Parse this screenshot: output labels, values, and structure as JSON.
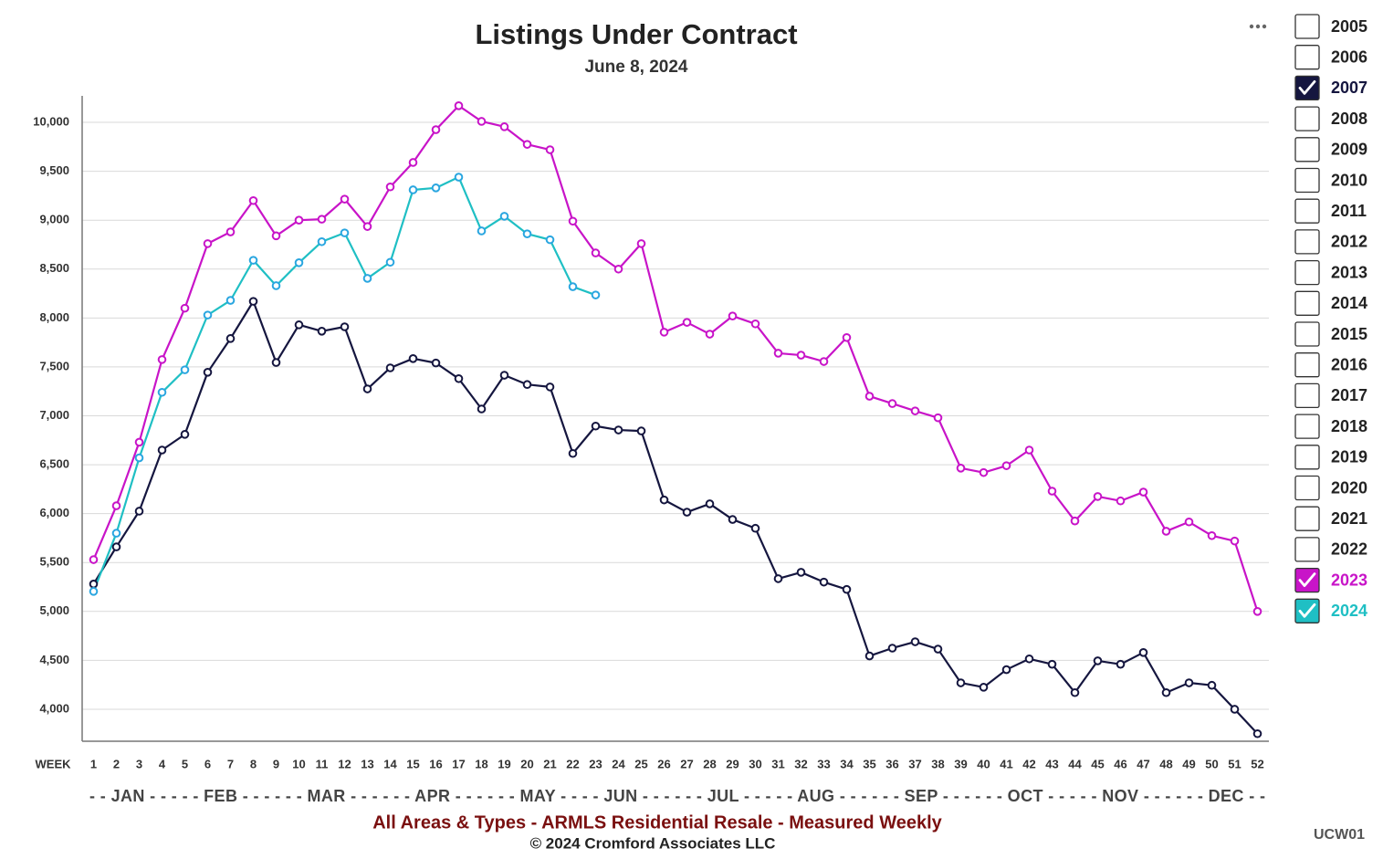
{
  "chart_data": {
    "type": "line",
    "title": "Listings Under Contract",
    "subtitle": "June 8, 2024",
    "x_label": "WEEK",
    "month_axis": "- - JAN - - - - - FEB - - - - - - MAR - - - - - - APR - - - - - - MAY - - - - JUN - - - - - - JUL - - - - - AUG - - - - - - SEP - - - - - - OCT - - - - - NOV - - - - - - DEC - -",
    "footer": "All Areas & Types - ARMLS Residential Resale - Measured Weekly",
    "copyright": "© 2024 Cromford Associates LLC",
    "code": "UCW01",
    "x": [
      1,
      2,
      3,
      4,
      5,
      6,
      7,
      8,
      9,
      10,
      11,
      12,
      13,
      14,
      15,
      16,
      17,
      18,
      19,
      20,
      21,
      22,
      23,
      24,
      25,
      26,
      27,
      28,
      29,
      30,
      31,
      32,
      33,
      34,
      35,
      36,
      37,
      38,
      39,
      40,
      41,
      42,
      43,
      44,
      45,
      46,
      47,
      48,
      49,
      50,
      51,
      52
    ],
    "xlim": [
      0.5,
      52.5
    ],
    "xticks": [
      1,
      2,
      3,
      4,
      5,
      6,
      7,
      8,
      9,
      10,
      11,
      12,
      13,
      14,
      15,
      16,
      17,
      18,
      19,
      20,
      21,
      22,
      23,
      24,
      25,
      26,
      27,
      28,
      29,
      30,
      31,
      32,
      33,
      34,
      35,
      36,
      37,
      38,
      39,
      40,
      41,
      42,
      43,
      44,
      45,
      46,
      47,
      48,
      49,
      50,
      51,
      52
    ],
    "ylim": [
      3673,
      10271
    ],
    "yticks": [
      {
        "value": 4000,
        "label": "4,000"
      },
      {
        "value": 4500,
        "label": "4,500"
      },
      {
        "value": 5000,
        "label": "5,000"
      },
      {
        "value": 5500,
        "label": "5,500"
      },
      {
        "value": 6000,
        "label": "6,000"
      },
      {
        "value": 6500,
        "label": "6,500"
      },
      {
        "value": 7000,
        "label": "7,000"
      },
      {
        "value": 7500,
        "label": "7,500"
      },
      {
        "value": 8000,
        "label": "8,000"
      },
      {
        "value": 8500,
        "label": "8,500"
      },
      {
        "value": 9000,
        "label": "9,000"
      },
      {
        "value": 9500,
        "label": "9,500"
      },
      {
        "value": 10000,
        "label": "10,000"
      }
    ],
    "grid": true,
    "legend": [
      "2005",
      "2006",
      "2007",
      "2008",
      "2009",
      "2010",
      "2011",
      "2012",
      "2013",
      "2014",
      "2015",
      "2016",
      "2017",
      "2018",
      "2019",
      "2020",
      "2021",
      "2022",
      "2023",
      "2024"
    ],
    "series": [
      {
        "name": "2007",
        "color": "#15163f",
        "marker_color": "#15163f",
        "values": [
          5280,
          5660,
          6025,
          6650,
          6810,
          7445,
          7790,
          8170,
          7545,
          7930,
          7865,
          7910,
          7275,
          7490,
          7585,
          7540,
          7380,
          7070,
          7415,
          7320,
          7295,
          6615,
          6895,
          6855,
          6845,
          6140,
          6015,
          6100,
          5940,
          5850,
          5335,
          5400,
          5300,
          5225,
          4545,
          4625,
          4690,
          4615,
          4270,
          4225,
          4405,
          4515,
          4460,
          4170,
          4495,
          4460,
          4580,
          4170,
          4270,
          4245,
          4000,
          3750
        ]
      },
      {
        "name": "2023",
        "color": "#c814c8",
        "marker_color": "#c814c8",
        "values": [
          5530,
          6080,
          6730,
          7575,
          8100,
          8760,
          8880,
          9200,
          8840,
          9000,
          9010,
          9215,
          8935,
          9340,
          9590,
          9925,
          10170,
          10010,
          9955,
          9775,
          9720,
          8990,
          8665,
          8500,
          8760,
          7855,
          7955,
          7835,
          8020,
          7940,
          7640,
          7620,
          7555,
          7800,
          7200,
          7125,
          7050,
          6980,
          6465,
          6420,
          6490,
          6650,
          6230,
          5925,
          6175,
          6130,
          6220,
          5820,
          5915,
          5775,
          5720,
          5000
        ]
      },
      {
        "name": "2024",
        "color": "#1fbfc4",
        "marker_color": "#2aa6e0",
        "values": [
          5205,
          5800,
          6570,
          7240,
          7470,
          8030,
          8180,
          8590,
          8330,
          8565,
          8780,
          8870,
          8405,
          8570,
          9310,
          9330,
          9440,
          8890,
          9040,
          8860,
          8800,
          8320,
          8235,
          null,
          null,
          null,
          null,
          null,
          null,
          null,
          null,
          null,
          null,
          null,
          null,
          null,
          null,
          null,
          null,
          null,
          null,
          null,
          null,
          null,
          null,
          null,
          null,
          null,
          null,
          null,
          null,
          null
        ]
      }
    ]
  }
}
